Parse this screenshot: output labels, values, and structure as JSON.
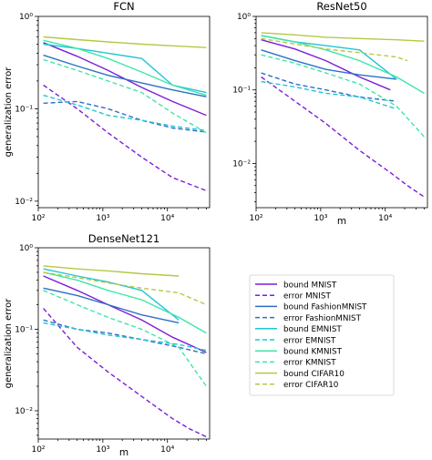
{
  "chart_data": [
    {
      "type": "line",
      "title": "FCN",
      "xlabel": "",
      "ylabel": "generalization error",
      "xscale": "log",
      "yscale": "log",
      "xlim": [
        100,
        45000
      ],
      "ylim": [
        0.0085,
        1.0
      ],
      "xticks": [
        {
          "v": 100,
          "label": "10²"
        },
        {
          "v": 1000,
          "label": "10³"
        },
        {
          "v": 10000,
          "label": "10⁴"
        }
      ],
      "yticks": [
        {
          "v": 1,
          "label": "10⁰"
        },
        {
          "v": 0.1,
          "label": "10⁻¹"
        },
        {
          "v": 0.01,
          "label": "10⁻²"
        }
      ],
      "series": [
        {
          "name": "bound MNIST",
          "color": "#7b1fd6",
          "dash": "solid",
          "x": [
            120,
            400,
            1200,
            4000,
            12000,
            40000
          ],
          "y": [
            0.52,
            0.37,
            0.26,
            0.17,
            0.12,
            0.085
          ]
        },
        {
          "name": "error MNIST",
          "color": "#7b1fd6",
          "dash": "dashed",
          "x": [
            120,
            400,
            1200,
            4000,
            12000,
            40000
          ],
          "y": [
            0.18,
            0.1,
            0.055,
            0.03,
            0.018,
            0.013
          ]
        },
        {
          "name": "bound FashionMNIST",
          "color": "#2f6fc7",
          "dash": "solid",
          "x": [
            120,
            400,
            1200,
            4000,
            12000,
            40000
          ],
          "y": [
            0.38,
            0.29,
            0.23,
            0.19,
            0.16,
            0.135
          ]
        },
        {
          "name": "error FashionMNIST",
          "color": "#2f6fc7",
          "dash": "dashed",
          "x": [
            120,
            400,
            1200,
            4000,
            12000,
            40000
          ],
          "y": [
            0.115,
            0.12,
            0.1,
            0.075,
            0.062,
            0.056
          ]
        },
        {
          "name": "bound EMNIST",
          "color": "#22c4d6",
          "dash": "solid",
          "x": [
            120,
            400,
            1200,
            4000,
            12000,
            40000
          ],
          "y": [
            0.5,
            0.45,
            0.4,
            0.35,
            0.18,
            0.15
          ]
        },
        {
          "name": "error EMNIST",
          "color": "#22c4d6",
          "dash": "dashed",
          "x": [
            120,
            400,
            1200,
            4000,
            12000,
            40000
          ],
          "y": [
            0.14,
            0.11,
            0.085,
            0.075,
            0.065,
            0.058
          ]
        },
        {
          "name": "bound KMNIST",
          "color": "#3ee6a8",
          "dash": "solid",
          "x": [
            120,
            400,
            1200,
            4000,
            12000,
            40000
          ],
          "y": [
            0.55,
            0.45,
            0.35,
            0.25,
            0.18,
            0.14
          ]
        },
        {
          "name": "error KMNIST",
          "color": "#3ee6a8",
          "dash": "dashed",
          "x": [
            120,
            400,
            1200,
            4000,
            12000,
            40000
          ],
          "y": [
            0.34,
            0.26,
            0.2,
            0.15,
            0.09,
            0.055
          ]
        },
        {
          "name": "bound CIFAR10",
          "color": "#b8c744",
          "dash": "solid",
          "x": [
            120,
            400,
            1200,
            4000,
            12000,
            40000
          ],
          "y": [
            0.6,
            0.56,
            0.53,
            0.5,
            0.48,
            0.46
          ]
        }
      ]
    },
    {
      "type": "line",
      "title": "ResNet50",
      "xlabel": "m",
      "ylabel": "",
      "xscale": "log",
      "yscale": "log",
      "xlim": [
        100,
        45000
      ],
      "ylim": [
        0.0025,
        1.0
      ],
      "xticks": [
        {
          "v": 100,
          "label": "10²"
        },
        {
          "v": 1000,
          "label": "10³"
        },
        {
          "v": 10000,
          "label": "10⁴"
        }
      ],
      "yticks": [
        {
          "v": 1,
          "label": "10⁰"
        },
        {
          "v": 0.1,
          "label": "10⁻¹"
        },
        {
          "v": 0.01,
          "label": "10⁻²"
        }
      ],
      "series": [
        {
          "name": "bound MNIST",
          "color": "#7b1fd6",
          "dash": "solid",
          "x": [
            120,
            400,
            1200,
            4000,
            12000
          ],
          "y": [
            0.48,
            0.36,
            0.25,
            0.15,
            0.1
          ]
        },
        {
          "name": "error MNIST",
          "color": "#7b1fd6",
          "dash": "dashed",
          "x": [
            120,
            400,
            1200,
            4000,
            12000,
            22000,
            40000
          ],
          "y": [
            0.15,
            0.07,
            0.035,
            0.015,
            0.0075,
            0.005,
            0.0035
          ]
        },
        {
          "name": "bound FashionMNIST",
          "color": "#2f6fc7",
          "dash": "solid",
          "x": [
            120,
            400,
            1200,
            4000,
            15000
          ],
          "y": [
            0.35,
            0.25,
            0.19,
            0.16,
            0.14
          ]
        },
        {
          "name": "error FashionMNIST",
          "color": "#2f6fc7",
          "dash": "dashed",
          "x": [
            120,
            400,
            1200,
            4000,
            15000
          ],
          "y": [
            0.17,
            0.12,
            0.1,
            0.08,
            0.07
          ]
        },
        {
          "name": "bound EMNIST",
          "color": "#22c4d6",
          "dash": "solid",
          "x": [
            120,
            400,
            1200,
            4000,
            15000
          ],
          "y": [
            0.55,
            0.45,
            0.4,
            0.35,
            0.14
          ]
        },
        {
          "name": "error EMNIST",
          "color": "#22c4d6",
          "dash": "dashed",
          "x": [
            120,
            400,
            1200,
            4000,
            15000
          ],
          "y": [
            0.13,
            0.11,
            0.09,
            0.08,
            0.055
          ]
        },
        {
          "name": "bound KMNIST",
          "color": "#3ee6a8",
          "dash": "solid",
          "x": [
            120,
            400,
            1200,
            4000,
            15000,
            40000
          ],
          "y": [
            0.55,
            0.45,
            0.35,
            0.25,
            0.15,
            0.09
          ]
        },
        {
          "name": "error KMNIST",
          "color": "#3ee6a8",
          "dash": "dashed",
          "x": [
            120,
            400,
            1200,
            4000,
            15000,
            40000
          ],
          "y": [
            0.3,
            0.23,
            0.17,
            0.12,
            0.06,
            0.023
          ]
        },
        {
          "name": "bound CIFAR10",
          "color": "#b8c744",
          "dash": "solid",
          "x": [
            120,
            400,
            1200,
            4000,
            15000,
            40000
          ],
          "y": [
            0.6,
            0.56,
            0.52,
            0.5,
            0.48,
            0.46
          ]
        },
        {
          "name": "error CIFAR10",
          "color": "#b8c744",
          "dash": "dashed",
          "x": [
            120,
            400,
            1200,
            4000,
            15000,
            22000
          ],
          "y": [
            0.5,
            0.42,
            0.36,
            0.32,
            0.28,
            0.25
          ]
        }
      ]
    },
    {
      "type": "line",
      "title": "DenseNet121",
      "xlabel": "m",
      "ylabel": "generalization error",
      "xscale": "log",
      "yscale": "log",
      "xlim": [
        100,
        45000
      ],
      "ylim": [
        0.0045,
        1.0
      ],
      "xticks": [
        {
          "v": 100,
          "label": "10²"
        },
        {
          "v": 1000,
          "label": "10³"
        },
        {
          "v": 10000,
          "label": "10⁴"
        }
      ],
      "yticks": [
        {
          "v": 1,
          "label": "10⁰"
        },
        {
          "v": 0.1,
          "label": "10⁻¹"
        },
        {
          "v": 0.01,
          "label": "10⁻²"
        }
      ],
      "series": [
        {
          "name": "bound MNIST",
          "color": "#7b1fd6",
          "dash": "solid",
          "x": [
            120,
            400,
            1200,
            4000,
            12000,
            40000
          ],
          "y": [
            0.45,
            0.3,
            0.2,
            0.13,
            0.08,
            0.052
          ]
        },
        {
          "name": "error MNIST",
          "color": "#7b1fd6",
          "dash": "dashed",
          "x": [
            120,
            400,
            1200,
            4000,
            12000,
            22000,
            40000
          ],
          "y": [
            0.18,
            0.06,
            0.03,
            0.015,
            0.008,
            0.006,
            0.0048
          ]
        },
        {
          "name": "bound FashionMNIST",
          "color": "#2f6fc7",
          "dash": "solid",
          "x": [
            120,
            400,
            1200,
            4000,
            15000
          ],
          "y": [
            0.32,
            0.26,
            0.2,
            0.15,
            0.12
          ]
        },
        {
          "name": "error FashionMNIST",
          "color": "#2f6fc7",
          "dash": "dashed",
          "x": [
            120,
            400,
            1200,
            4000,
            15000,
            40000
          ],
          "y": [
            0.13,
            0.1,
            0.09,
            0.075,
            0.06,
            0.05
          ]
        },
        {
          "name": "bound EMNIST",
          "color": "#22c4d6",
          "dash": "solid",
          "x": [
            120,
            400,
            1200,
            4000,
            15000
          ],
          "y": [
            0.55,
            0.45,
            0.38,
            0.3,
            0.13
          ]
        },
        {
          "name": "error EMNIST",
          "color": "#22c4d6",
          "dash": "dashed",
          "x": [
            120,
            400,
            1200,
            4000,
            15000,
            40000
          ],
          "y": [
            0.12,
            0.1,
            0.085,
            0.075,
            0.065,
            0.055
          ]
        },
        {
          "name": "bound KMNIST",
          "color": "#3ee6a8",
          "dash": "solid",
          "x": [
            120,
            400,
            1200,
            4000,
            15000,
            40000
          ],
          "y": [
            0.5,
            0.4,
            0.3,
            0.23,
            0.14,
            0.09
          ]
        },
        {
          "name": "error KMNIST",
          "color": "#3ee6a8",
          "dash": "dashed",
          "x": [
            120,
            400,
            1200,
            4000,
            15000,
            40000
          ],
          "y": [
            0.3,
            0.2,
            0.14,
            0.1,
            0.06,
            0.02
          ]
        },
        {
          "name": "bound CIFAR10",
          "color": "#b8c744",
          "dash": "solid",
          "x": [
            120,
            400,
            1200,
            4000,
            15000
          ],
          "y": [
            0.6,
            0.55,
            0.52,
            0.48,
            0.45
          ]
        },
        {
          "name": "error CIFAR10",
          "color": "#b8c744",
          "dash": "dashed",
          "x": [
            120,
            400,
            1200,
            4000,
            15000,
            40000
          ],
          "y": [
            0.5,
            0.43,
            0.37,
            0.32,
            0.28,
            0.2
          ]
        }
      ]
    }
  ],
  "legend": {
    "placement": "bottom-right",
    "entries": [
      {
        "label": "bound MNIST",
        "color": "#7b1fd6",
        "dash": "solid"
      },
      {
        "label": "error MNIST",
        "color": "#7b1fd6",
        "dash": "dashed"
      },
      {
        "label": "bound FashionMNIST",
        "color": "#2f6fc7",
        "dash": "solid"
      },
      {
        "label": "error FashionMNIST",
        "color": "#2f6fc7",
        "dash": "dashed"
      },
      {
        "label": "bound EMNIST",
        "color": "#22c4d6",
        "dash": "solid"
      },
      {
        "label": "error EMNIST",
        "color": "#22c4d6",
        "dash": "dashed"
      },
      {
        "label": "bound KMNIST",
        "color": "#3ee6a8",
        "dash": "solid"
      },
      {
        "label": "error KMNIST",
        "color": "#3ee6a8",
        "dash": "dashed"
      },
      {
        "label": "bound CIFAR10",
        "color": "#b8c744",
        "dash": "solid"
      },
      {
        "label": "error CIFAR10",
        "color": "#b8c744",
        "dash": "dashed"
      }
    ]
  }
}
